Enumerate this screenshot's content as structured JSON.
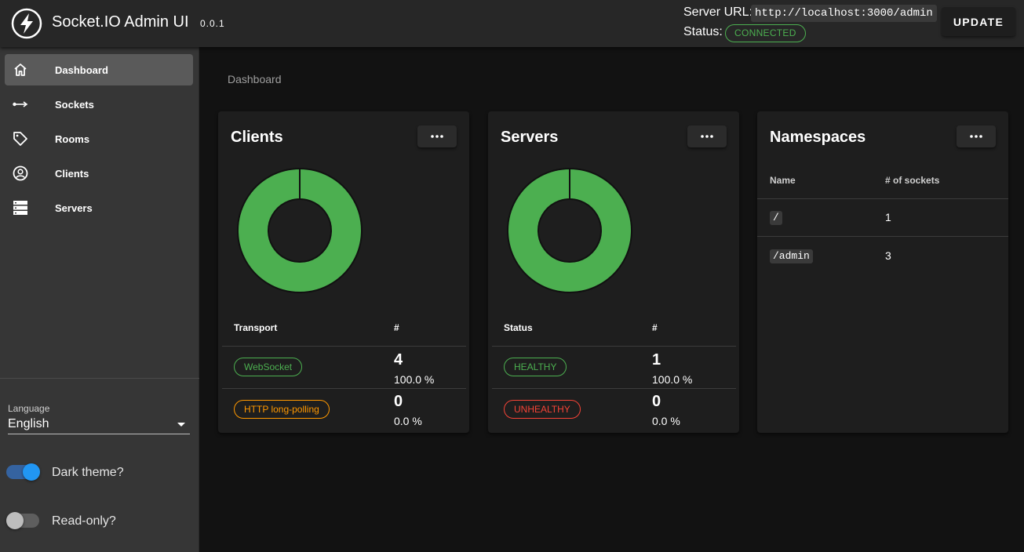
{
  "app": {
    "title": "Socket.IO Admin UI",
    "version": "0.0.1",
    "logo_icon": "socketio-logo-icon"
  },
  "header": {
    "server_url_label": "Server URL:",
    "server_url": "http://localhost:3000/admin",
    "status_label": "Status:",
    "status": "CONNECTED",
    "update_label": "UPDATE"
  },
  "sidebar": {
    "items": [
      {
        "label": "Dashboard",
        "icon": "home-icon",
        "active": true
      },
      {
        "label": "Sockets",
        "icon": "socket-arrow-icon",
        "active": false
      },
      {
        "label": "Rooms",
        "icon": "tag-icon",
        "active": false
      },
      {
        "label": "Clients",
        "icon": "account-circle-icon",
        "active": false
      },
      {
        "label": "Servers",
        "icon": "server-icon",
        "active": false
      }
    ],
    "language_label": "Language",
    "language_value": "English",
    "dark_theme_label": "Dark theme?",
    "dark_theme_on": true,
    "read_only_label": "Read-only?",
    "read_only_on": false
  },
  "main": {
    "breadcrumb": "Dashboard",
    "clients": {
      "title": "Clients",
      "col_transport": "Transport",
      "col_count": "#",
      "rows": [
        {
          "transport": "WebSocket",
          "count": "4",
          "percent": "100.0 %"
        },
        {
          "transport": "HTTP long-polling",
          "count": "0",
          "percent": "0.0 %"
        }
      ]
    },
    "servers": {
      "title": "Servers",
      "col_status": "Status",
      "col_count": "#",
      "rows": [
        {
          "status": "HEALTHY",
          "count": "1",
          "percent": "100.0 %"
        },
        {
          "status": "UNHEALTHY",
          "count": "0",
          "percent": "0.0 %"
        }
      ]
    },
    "namespaces": {
      "title": "Namespaces",
      "col_name": "Name",
      "col_sockets": "# of sockets",
      "rows": [
        {
          "name": "/",
          "sockets": "1"
        },
        {
          "name": "/admin",
          "sockets": "3"
        }
      ]
    }
  },
  "colors": {
    "green": "#4caf50",
    "orange": "#ff9800",
    "red": "#f44336",
    "blue": "#2196f3"
  },
  "chart_data": [
    {
      "type": "pie",
      "categories": [
        "WebSocket",
        "HTTP long-polling"
      ],
      "values": [
        4,
        0
      ]
    },
    {
      "type": "pie",
      "categories": [
        "HEALTHY",
        "UNHEALTHY"
      ],
      "values": [
        1,
        0
      ]
    }
  ]
}
